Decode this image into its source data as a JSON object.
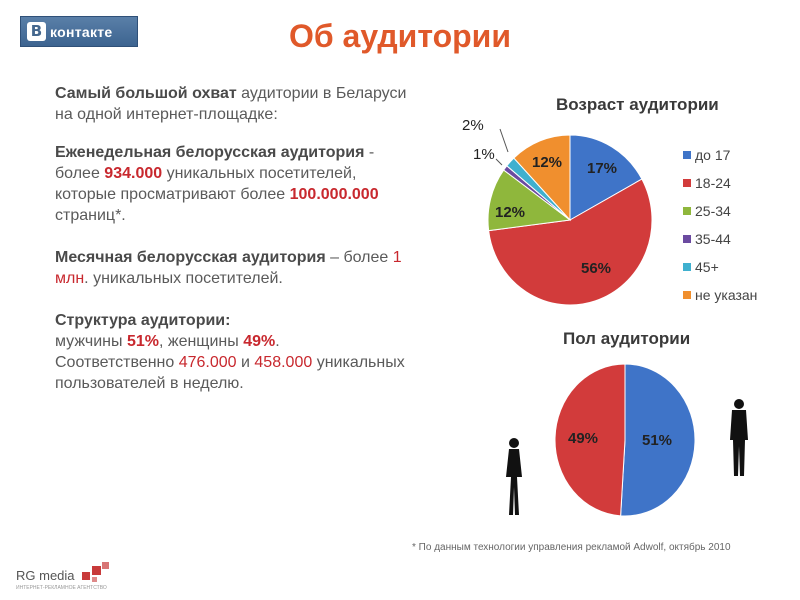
{
  "header": {
    "logo_text": "контакте",
    "logo_letter": "В",
    "title": "Об аудитории"
  },
  "text": {
    "p1_bold": "Самый большой охват",
    "p1_rest": " аудитории в Беларуси на одной интернет-площадке:",
    "p2_bold": "Еженедельная белорусская аудитория",
    "p2_a": " - более ",
    "p2_num1": "934.000",
    "p2_b": " уникальных посетителей, которые просматривают более ",
    "p2_num2": "100.000.000",
    "p2_c": " страниц*.",
    "p3_bold": "Месячная белорусская аудитория",
    "p3_a": " – более ",
    "p3_num": "1 млн",
    "p3_b": ". уникальных посетителей.",
    "p4_bold": "Структура аудитории:",
    "p4_a": "мужчины ",
    "p4_men": "51%",
    "p4_b": ", женщины ",
    "p4_women": "49%",
    "p4_c": ".",
    "p4_d": "Соответственно ",
    "p4_num1": "476.000",
    "p4_e": " и ",
    "p4_num2": "458.000",
    "p4_f": " уникальных пользователей в неделю."
  },
  "footnote": "* По данным технологии управления рекламой Adwolf, октябрь 2010",
  "footer_logo": {
    "text": "RG media",
    "tagline": "ИНТЕРНЕТ-РЕКЛАМНОЕ АГЕНТСТВО"
  },
  "colors": {
    "accent": "#e0592a",
    "highlight": "#c8282e",
    "vk_blue": "#45688e"
  },
  "chart_data": [
    {
      "type": "pie",
      "title": "Возраст аудитории",
      "categories": [
        "до 17",
        "18-24",
        "25-34",
        "35-44",
        "45+",
        "не указан"
      ],
      "values": [
        17,
        56,
        12,
        1,
        2,
        12
      ],
      "labels": [
        "17%",
        "56%",
        "12%",
        "1%",
        "2%",
        "12%"
      ],
      "colors": [
        "#3f74c8",
        "#d23b3b",
        "#8fb73c",
        "#6b4aa0",
        "#3fb0cf",
        "#f08f2e"
      ],
      "legend_position": "right"
    },
    {
      "type": "pie",
      "title": "Пол аудитории",
      "categories": [
        "мужчины",
        "женщины"
      ],
      "values": [
        51,
        49
      ],
      "labels": [
        "51%",
        "49%"
      ],
      "colors": [
        "#3f74c8",
        "#d23b3b"
      ]
    }
  ]
}
